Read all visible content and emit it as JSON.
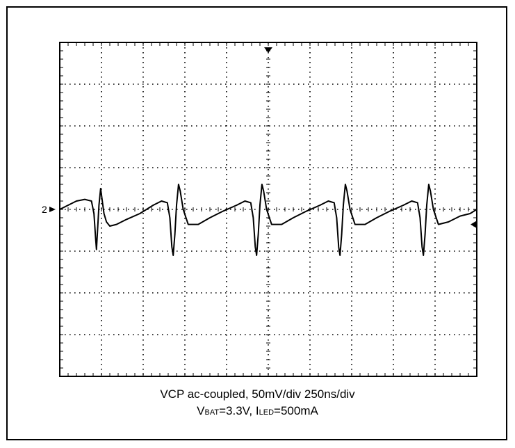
{
  "chart_data": {
    "type": "line",
    "title": "",
    "xlabel": "",
    "ylabel": "",
    "grid": true,
    "x_divisions": 10,
    "y_divisions": 8,
    "x_unit_per_div": "250ns",
    "y_unit_per_div": "50mV",
    "xlim": [
      0,
      2500
    ],
    "ylim": [
      -200,
      200
    ],
    "x_unit": "ns",
    "y_unit": "mV",
    "channel_marker": "2",
    "series": [
      {
        "name": "",
        "x": [
          0,
          50,
          100,
          150,
          190,
          205,
          215,
          220,
          228,
          235,
          245,
          255,
          265,
          280,
          300,
          340,
          400,
          480,
          560,
          610,
          645,
          660,
          672,
          680,
          690,
          700,
          712,
          722,
          740,
          770,
          830,
          900,
          980,
          1060,
          1110,
          1145,
          1160,
          1172,
          1180,
          1190,
          1200,
          1212,
          1222,
          1240,
          1270,
          1330,
          1400,
          1480,
          1560,
          1610,
          1645,
          1660,
          1672,
          1680,
          1690,
          1700,
          1712,
          1722,
          1740,
          1770,
          1830,
          1900,
          1980,
          2060,
          2110,
          2145,
          2160,
          2172,
          2180,
          2190,
          2200,
          2212,
          2222,
          2240,
          2270,
          2330,
          2400,
          2460,
          2500
        ],
        "y": [
          0,
          5,
          10,
          12,
          10,
          -5,
          -35,
          -48,
          -20,
          5,
          25,
          10,
          -5,
          -15,
          -20,
          -18,
          -12,
          -5,
          5,
          10,
          8,
          -10,
          -45,
          -55,
          -30,
          5,
          30,
          22,
          0,
          -18,
          -18,
          -10,
          -2,
          5,
          10,
          8,
          -10,
          -45,
          -55,
          -30,
          5,
          30,
          22,
          0,
          -18,
          -18,
          -10,
          -2,
          5,
          10,
          8,
          -10,
          -45,
          -55,
          -30,
          5,
          30,
          22,
          0,
          -18,
          -18,
          -10,
          -2,
          5,
          10,
          8,
          -10,
          -45,
          -55,
          -30,
          5,
          30,
          22,
          0,
          -18,
          -15,
          -8,
          -5,
          0
        ]
      }
    ]
  },
  "caption": {
    "line1": "VCP ac-coupled, 50mV/div  250ns/div",
    "vbat_main": "V",
    "vbat_sub": "BAT",
    "vbat_value": "=3.3V, ",
    "iled_main": "I",
    "iled_sub": "LED",
    "iled_value": "=500mA"
  }
}
